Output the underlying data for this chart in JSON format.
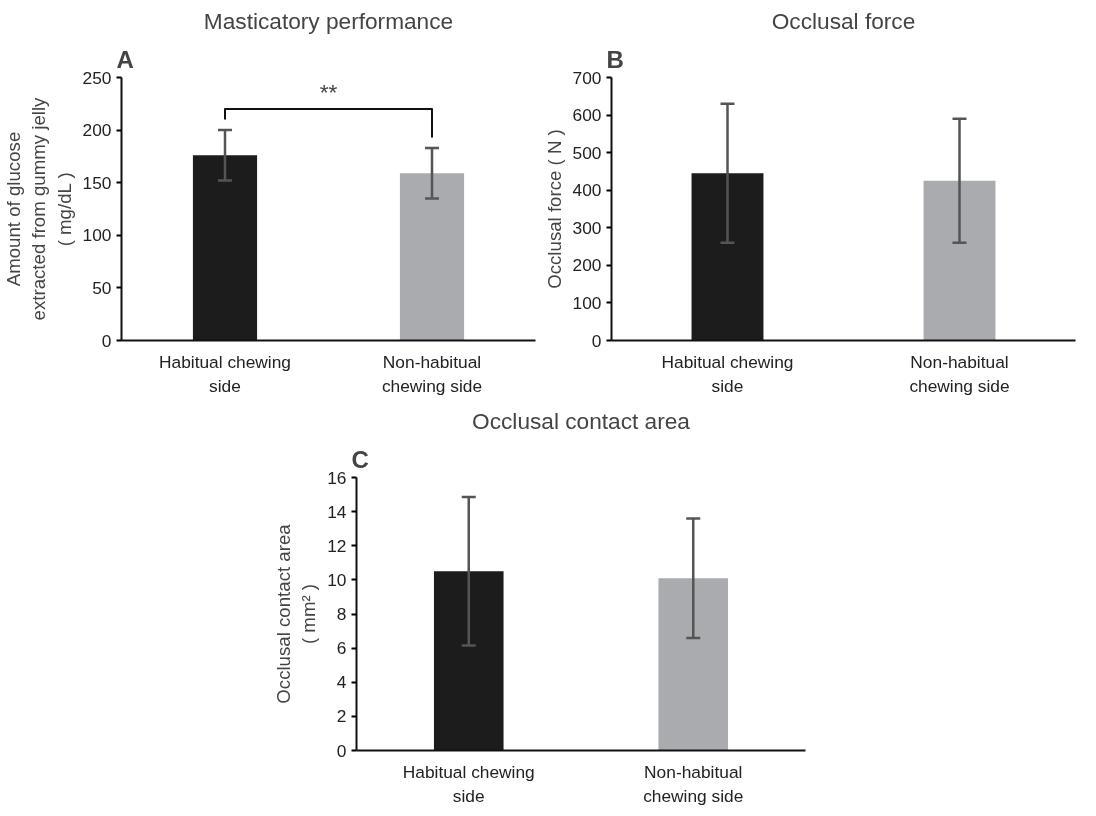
{
  "chart_data": [
    {
      "type": "bar",
      "title": "Masticatory performance",
      "ylabel": "Amount of glucose\nextracted from gummy jelly\n( mg/dL )",
      "categories": [
        "Habitual chewing\nside",
        "Non-habitual\nchewing side"
      ],
      "values": [
        176,
        159
      ],
      "colors": [
        "#1c1c1c",
        "#aaabae"
      ],
      "errors": [
        24,
        24
      ],
      "ylim": [
        0,
        250
      ],
      "yticks": [
        0,
        50,
        100,
        150,
        200,
        250
      ],
      "grid": false,
      "annotations": [
        "A",
        "**"
      ]
    },
    {
      "type": "bar",
      "title": "Occlusal force",
      "ylabel": "Occlusal force ( N )",
      "categories": [
        "Habitual chewing\nside",
        "Non-habitual\nchewing side"
      ],
      "values": [
        445,
        425
      ],
      "colors": [
        "#1c1c1c",
        "#aaabae"
      ],
      "errors": [
        185,
        165
      ],
      "ylim": [
        0,
        700
      ],
      "yticks": [
        0,
        100,
        200,
        300,
        400,
        500,
        600,
        700
      ],
      "grid": false,
      "annotations": [
        "B"
      ]
    },
    {
      "type": "bar",
      "title": "Occlusal contact area",
      "ylabel": "Occlusal contact area\n( mm² )",
      "categories": [
        "Habitual chewing\nside",
        "Non-habitual\nchewing side"
      ],
      "values": [
        10.5,
        10.1
      ],
      "colors": [
        "#1c1c1c",
        "#aaabae"
      ],
      "errors": [
        4.35,
        3.5
      ],
      "ylim": [
        0,
        16
      ],
      "yticks": [
        0,
        2,
        4,
        6,
        8,
        10,
        12,
        14,
        16
      ],
      "grid": false,
      "annotations": [
        "C"
      ]
    }
  ]
}
